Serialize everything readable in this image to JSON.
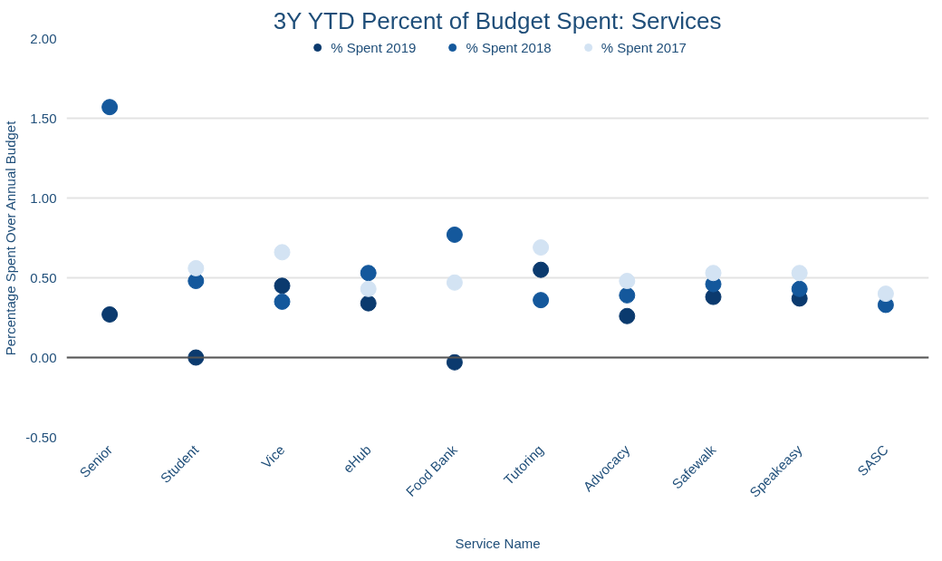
{
  "chart_data": {
    "type": "scatter",
    "title": "3Y YTD Percent of Budget Spent: Services",
    "xlabel": "Service Name",
    "ylabel": "Percentage Spent Over Annual Budget",
    "categories": [
      "Senior",
      "Student",
      "Vice",
      "eHub",
      "Food Bank",
      "Tutoring",
      "Advocacy",
      "Safewalk",
      "Speakeasy",
      "SASC"
    ],
    "series": [
      {
        "name": "% Spent 2019",
        "color": "#0b3a6e",
        "values": [
          0.27,
          0.0,
          0.45,
          0.34,
          -0.03,
          0.55,
          0.26,
          0.38,
          0.37,
          null
        ]
      },
      {
        "name": "% Spent 2018",
        "color": "#14589c",
        "values": [
          1.57,
          0.48,
          0.35,
          0.53,
          0.77,
          0.36,
          0.39,
          0.46,
          0.43,
          0.33
        ]
      },
      {
        "name": "% Spent 2017",
        "color": "#d3e3f3",
        "values": [
          null,
          0.56,
          0.66,
          0.43,
          0.47,
          0.69,
          0.48,
          0.53,
          0.53,
          0.4
        ]
      }
    ],
    "ylim": [
      -0.5,
      2.0
    ],
    "yticks": [
      {
        "value": -0.5,
        "label": "-0.50"
      },
      {
        "value": 0,
        "label": "0.00"
      },
      {
        "value": 0.5,
        "label": "0.50"
      },
      {
        "value": 1,
        "label": "1.00"
      },
      {
        "value": 1.5,
        "label": "1.50"
      },
      {
        "value": 2,
        "label": "2.00"
      }
    ],
    "ref_lines": [
      {
        "axis": "y",
        "value": 0,
        "color": "#555555"
      }
    ],
    "grid": "y",
    "legend": "top",
    "marker": "circle"
  }
}
